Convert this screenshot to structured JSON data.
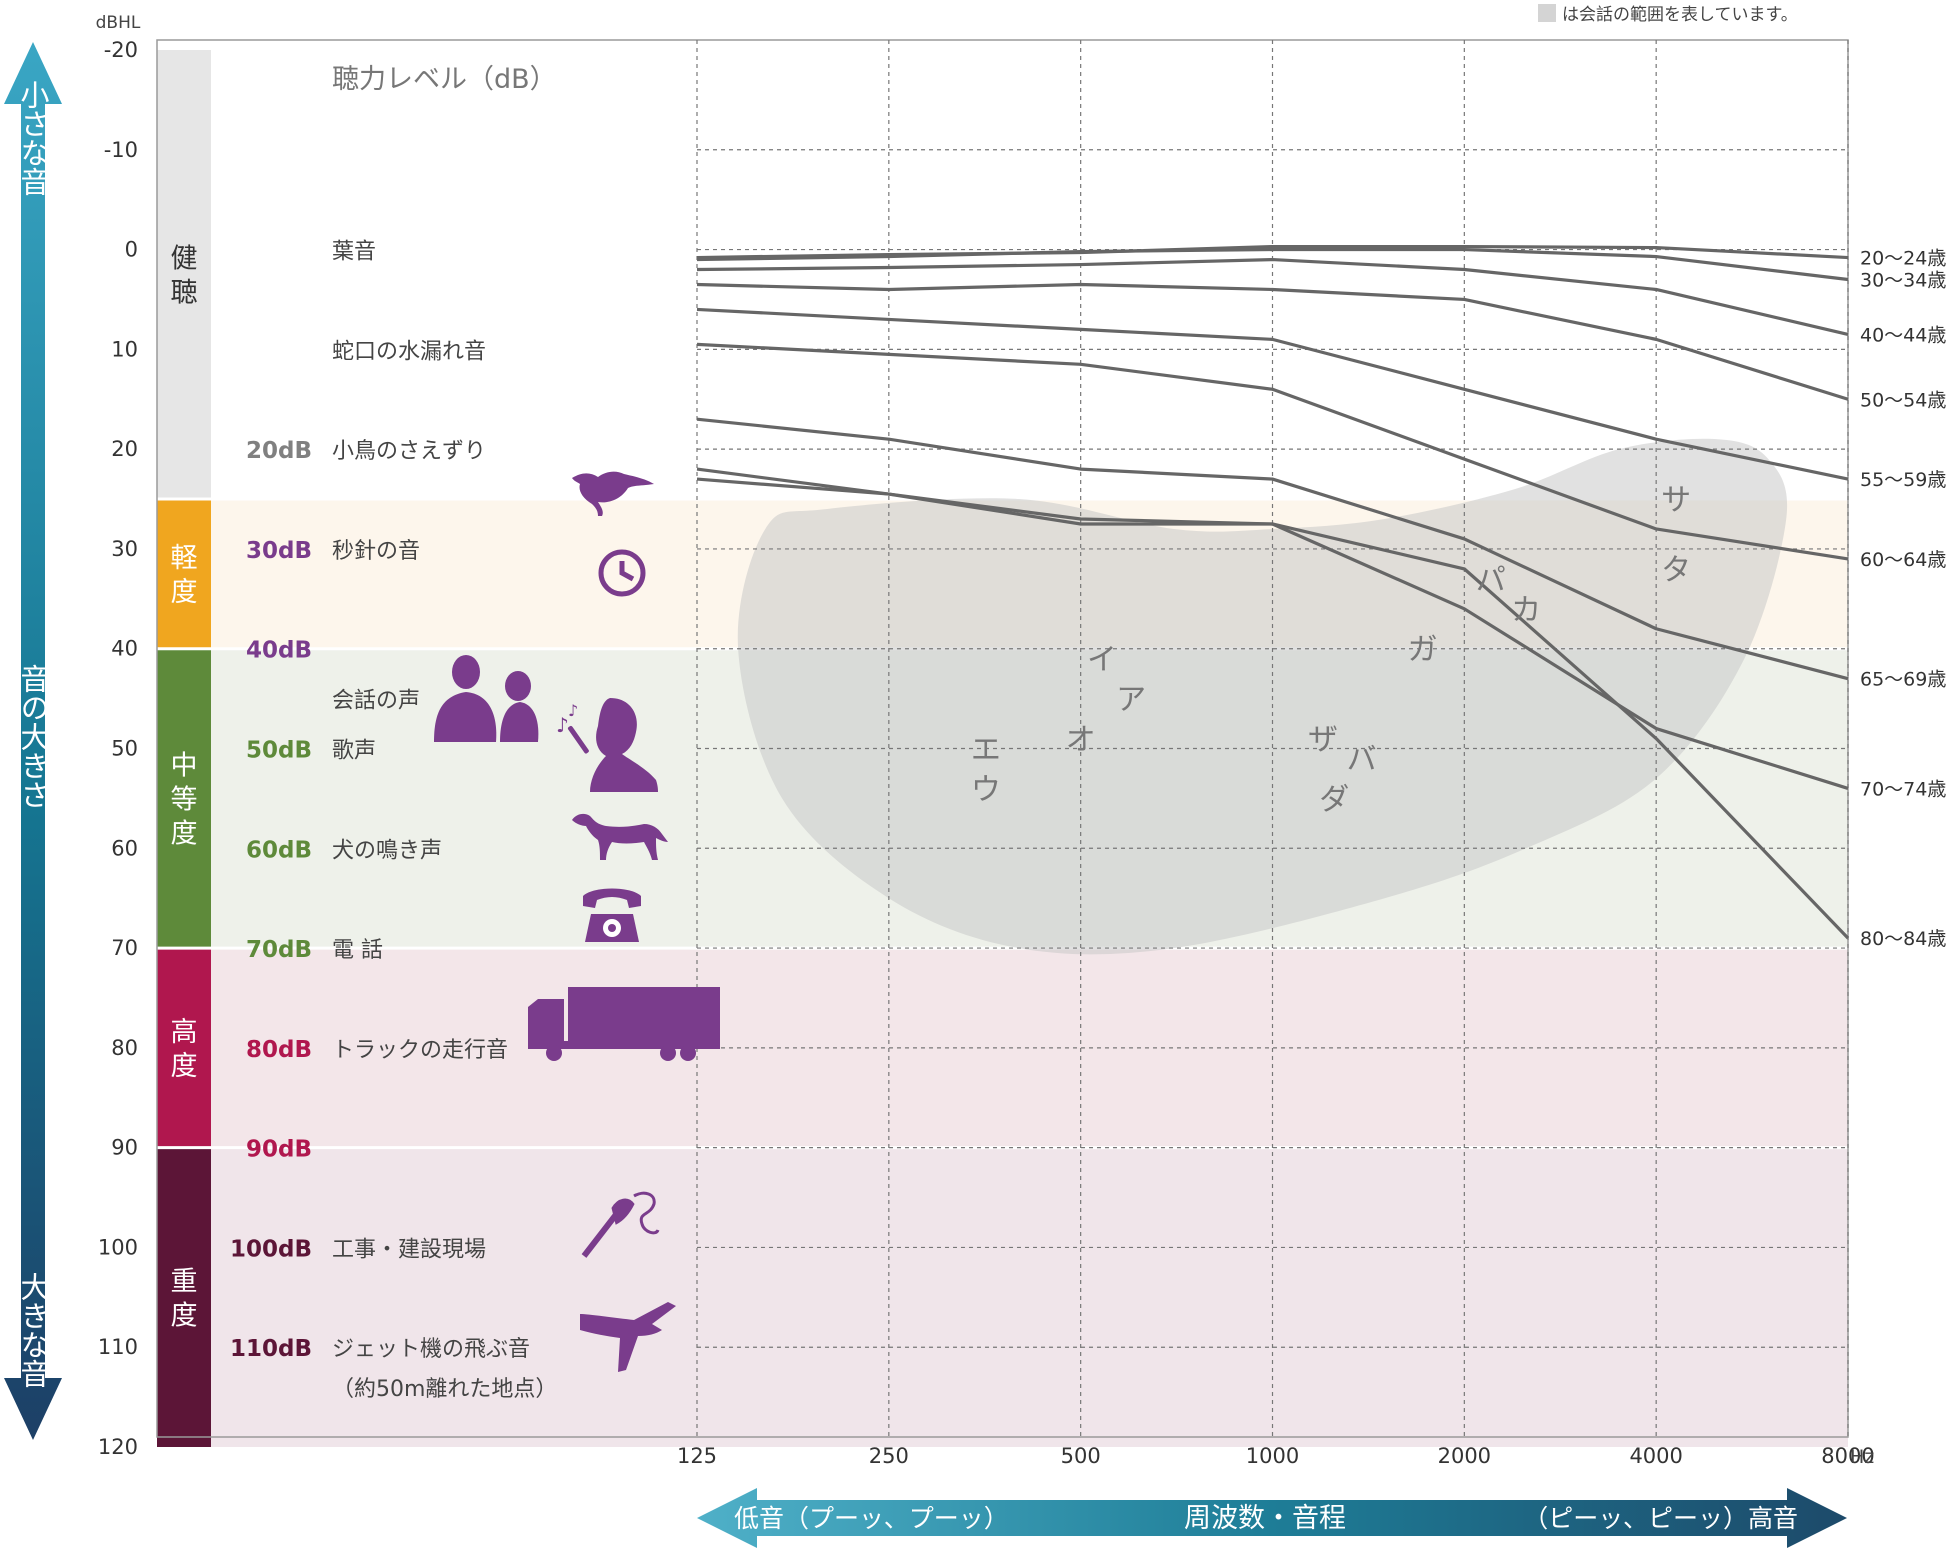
{
  "chart_data": {
    "type": "line",
    "title": "聴力レベル（dB）",
    "ylabel": "dBHL",
    "xlabel": "Hz",
    "note": "は会話の範囲を表しています。",
    "ylim": [
      -20,
      120
    ],
    "y_ticks": [
      "-20",
      "-10",
      "0",
      "10",
      "20",
      "30",
      "40",
      "50",
      "60",
      "70",
      "80",
      "90",
      "100",
      "110",
      "120"
    ],
    "x_ticks": [
      "125",
      "250",
      "500",
      "1000",
      "2000",
      "4000",
      "8000"
    ],
    "x_unit": "Hz",
    "grid": true,
    "y_axis_arrow": {
      "top": "小さな音",
      "middle": "音の大きさ",
      "bottom": "大きな音"
    },
    "x_axis_arrow": {
      "left": "低音（プーッ、プーッ）",
      "middle": "周波数・音程",
      "right": "（ピーッ、ピーッ）高音"
    },
    "bands": [
      {
        "label": "健聴",
        "from": -20,
        "to": 25,
        "color": "#e6e6e6",
        "bg": "#ffffff"
      },
      {
        "label": "軽度",
        "from": 25,
        "to": 40,
        "color": "#f0a61f",
        "bg": "#fdf6ec"
      },
      {
        "label": "中等度",
        "from": 40,
        "to": 70,
        "color": "#5e8a3a",
        "bg": "#eef1ea"
      },
      {
        "label": "高度",
        "from": 70,
        "to": 90,
        "color": "#b0174e",
        "bg": "#f3e6e9"
      },
      {
        "label": "重度",
        "from": 90,
        "to": 120,
        "color": "#5c1537",
        "bg": "#f0e5ea"
      }
    ],
    "examples": [
      {
        "level": 0,
        "db": "",
        "text": "葉音",
        "color": "#555555"
      },
      {
        "level": 10,
        "db": "",
        "text": "蛇口の水漏れ音",
        "color": "#555555"
      },
      {
        "level": 20,
        "db": "20dB",
        "text": "小鳥のさえずり",
        "color": "#808080"
      },
      {
        "level": 30,
        "db": "30dB",
        "text": "秒針の音",
        "color": "#7a3c8c"
      },
      {
        "level": 40,
        "db": "40dB",
        "text": "",
        "color": "#7a3c8c"
      },
      {
        "level": 45,
        "db": "",
        "text": "会話の声",
        "color": "#555555"
      },
      {
        "level": 50,
        "db": "50dB",
        "text": "歌声",
        "color": "#5e8a3a"
      },
      {
        "level": 60,
        "db": "60dB",
        "text": "犬の鳴き声",
        "color": "#5e8a3a"
      },
      {
        "level": 70,
        "db": "70dB",
        "text": "電 話",
        "color": "#5e8a3a"
      },
      {
        "level": 80,
        "db": "80dB",
        "text": "トラックの走行音",
        "color": "#b0174e"
      },
      {
        "level": 90,
        "db": "90dB",
        "text": "",
        "color": "#b0174e"
      },
      {
        "level": 100,
        "db": "100dB",
        "text": "工事・建設現場",
        "color": "#5c1537"
      },
      {
        "level": 110,
        "db": "110dB",
        "text": "ジェット機の飛ぶ音",
        "color": "#5c1537"
      },
      {
        "level": 114,
        "db": "",
        "text": "（約50m離れた地点）",
        "color": "#555555"
      }
    ],
    "icons": [
      "bird-icon",
      "clock-icon",
      "conversation-icon",
      "singer-icon",
      "dog-icon",
      "telephone-icon",
      "truck-icon",
      "drill-icon",
      "airplane-icon"
    ],
    "series": [
      {
        "name": "20〜24歳",
        "x": [
          125,
          250,
          500,
          1000,
          2000,
          4000,
          8000
        ],
        "y": [
          0.8,
          0.5,
          0.3,
          -0.3,
          -0.3,
          -0.2,
          0.8
        ]
      },
      {
        "name": "30〜34歳",
        "x": [
          125,
          250,
          500,
          1000,
          2000,
          4000,
          8000
        ],
        "y": [
          1.0,
          0.7,
          0.2,
          0.0,
          0.0,
          0.7,
          3.0
        ]
      },
      {
        "name": "40〜44歳",
        "x": [
          125,
          250,
          500,
          1000,
          2000,
          4000,
          8000
        ],
        "y": [
          2.0,
          1.8,
          1.5,
          1.0,
          2.0,
          4.0,
          8.5
        ]
      },
      {
        "name": "50〜54歳",
        "x": [
          125,
          250,
          500,
          1000,
          2000,
          4000,
          8000
        ],
        "y": [
          3.5,
          4.0,
          3.5,
          4.0,
          5.0,
          9.0,
          15.0
        ]
      },
      {
        "name": "55〜59歳",
        "x": [
          125,
          250,
          500,
          1000,
          2000,
          4000,
          8000
        ],
        "y": [
          6.0,
          7.0,
          8.0,
          9.0,
          14.0,
          19.0,
          23.0
        ]
      },
      {
        "name": "60〜64歳",
        "x": [
          125,
          250,
          500,
          1000,
          2000,
          4000,
          8000
        ],
        "y": [
          9.5,
          10.5,
          11.5,
          14.0,
          21.0,
          28.0,
          31.0
        ]
      },
      {
        "name": "65〜69歳",
        "x": [
          125,
          250,
          500,
          1000,
          2000,
          4000,
          8000
        ],
        "y": [
          17.0,
          19.0,
          22.0,
          23.0,
          29.0,
          38.0,
          43.0
        ]
      },
      {
        "name": "70〜74歳",
        "x": [
          125,
          250,
          500,
          1000,
          2000,
          4000,
          8000
        ],
        "y": [
          22.0,
          24.5,
          27.5,
          27.5,
          36.0,
          48.0,
          54.0
        ]
      },
      {
        "name": "80〜84歳",
        "x": [
          125,
          250,
          500,
          1000,
          2000,
          4000,
          8000
        ],
        "y": [
          23.0,
          24.5,
          27.0,
          27.5,
          32.0,
          49.0,
          69.0
        ]
      }
    ],
    "speech_banana": {
      "color": "#c8c8c8",
      "outline": [
        [
          160,
          28
        ],
        [
          200,
          26
        ],
        [
          400,
          25
        ],
        [
          700,
          28
        ],
        [
          1000,
          28
        ],
        [
          1500,
          27
        ],
        [
          2400,
          24
        ],
        [
          3500,
          20
        ],
        [
          5000,
          19
        ],
        [
          6000,
          21
        ],
        [
          6400,
          27
        ],
        [
          5500,
          41
        ],
        [
          4000,
          53
        ],
        [
          2500,
          60
        ],
        [
          1500,
          65
        ],
        [
          700,
          70
        ],
        [
          400,
          70
        ],
        [
          250,
          65
        ],
        [
          170,
          55
        ],
        [
          145,
          40
        ]
      ],
      "phonemes": [
        {
          "text": "エ",
          "f": 355,
          "db": 50
        },
        {
          "text": "ウ",
          "f": 355,
          "db": 54
        },
        {
          "text": "オ",
          "f": 500,
          "db": 49
        },
        {
          "text": "イ",
          "f": 540,
          "db": 41
        },
        {
          "text": "ア",
          "f": 600,
          "db": 45
        },
        {
          "text": "ザ",
          "f": 1200,
          "db": 49
        },
        {
          "text": "バ",
          "f": 1380,
          "db": 51
        },
        {
          "text": "ダ",
          "f": 1250,
          "db": 55
        },
        {
          "text": "ガ",
          "f": 1720,
          "db": 40
        },
        {
          "text": "パ",
          "f": 2200,
          "db": 33
        },
        {
          "text": "カ",
          "f": 2500,
          "db": 36
        },
        {
          "text": "サ",
          "f": 4300,
          "db": 25
        },
        {
          "text": "タ",
          "f": 4300,
          "db": 32
        }
      ]
    }
  }
}
